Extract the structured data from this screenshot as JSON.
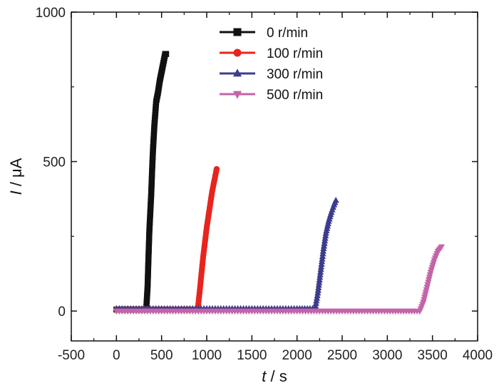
{
  "chart_data": {
    "type": "line",
    "title": "",
    "xlabel_italic": "t",
    "xlabel_rest": " / s",
    "ylabel_italic": "I",
    "ylabel_rest": " / μA",
    "xlim": [
      -500,
      4000
    ],
    "ylim": [
      -100,
      1000
    ],
    "xticks": [
      -500,
      0,
      500,
      1000,
      1500,
      2000,
      2500,
      3000,
      3500,
      4000
    ],
    "xtick_labels": [
      "-500",
      "0",
      "500",
      "1000",
      "1500",
      "2000",
      "2500",
      "3000",
      "3500",
      "4000"
    ],
    "yticks": [
      0,
      500,
      1000
    ],
    "ytick_labels": [
      "0",
      "500",
      "1000"
    ],
    "legend_position": "top-center",
    "series": [
      {
        "name": "0 r/min",
        "color": "#111111",
        "marker": "square",
        "x": [
          0,
          100,
          200,
          300,
          330,
          345,
          355,
          365,
          375,
          385,
          395,
          405,
          420,
          440,
          460,
          480,
          500,
          520,
          540,
          550
        ],
        "y": [
          5,
          5,
          5,
          5,
          5,
          80,
          180,
          270,
          330,
          390,
          470,
          540,
          620,
          700,
          730,
          770,
          800,
          830,
          860,
          860
        ]
      },
      {
        "name": "100 r/min",
        "color": "#e8241e",
        "marker": "circle",
        "x": [
          0,
          200,
          400,
          600,
          800,
          900,
          920,
          940,
          960,
          980,
          1000,
          1020,
          1040,
          1060,
          1080,
          1100,
          1110
        ],
        "y": [
          5,
          5,
          5,
          5,
          5,
          5,
          60,
          120,
          180,
          230,
          280,
          320,
          360,
          400,
          430,
          460,
          475
        ]
      },
      {
        "name": "300 r/min",
        "color": "#3c3c8e",
        "marker": "triangle-up",
        "x": [
          0,
          500,
          1000,
          1500,
          2000,
          2200,
          2230,
          2260,
          2290,
          2320,
          2350,
          2380,
          2410,
          2430
        ],
        "y": [
          8,
          8,
          8,
          8,
          8,
          8,
          60,
          130,
          200,
          260,
          300,
          330,
          355,
          370
        ]
      },
      {
        "name": "500 r/min",
        "color": "#c464a8",
        "marker": "triangle-down",
        "x": [
          0,
          500,
          1000,
          1500,
          2000,
          2500,
          3000,
          3300,
          3360,
          3400,
          3440,
          3480,
          3520,
          3560,
          3600
        ],
        "y": [
          0,
          0,
          0,
          0,
          0,
          0,
          0,
          0,
          0,
          30,
          80,
          130,
          170,
          200,
          215
        ]
      }
    ]
  }
}
